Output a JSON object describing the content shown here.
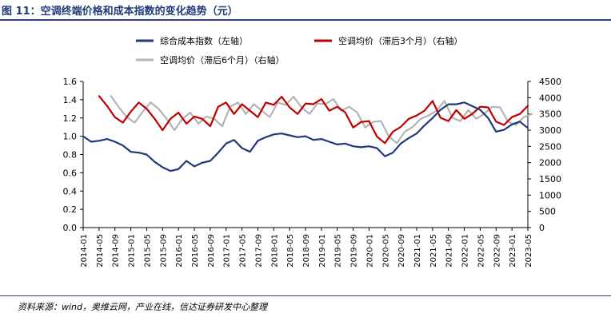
{
  "page": {
    "title": "图 11：空调终端价格和成本指数的变化趋势（元）",
    "source": "资料来源：wind，奥维云网，产业在线，信达证券研发中心整理"
  },
  "chart_data": {
    "type": "line",
    "title": "",
    "xlabel": "",
    "ylabel_left": "",
    "ylabel_right": "",
    "x_ticks": [
      "2014-01",
      "2014-05",
      "2014-09",
      "2015-01",
      "2015-05",
      "2015-09",
      "2016-01",
      "2016-05",
      "2016-09",
      "2017-01",
      "2017-05",
      "2017-09",
      "2018-01",
      "2018-05",
      "2018-09",
      "2019-01",
      "2019-05",
      "2019-09",
      "2020-01",
      "2020-05",
      "2020-09",
      "2021-01",
      "2021-05",
      "2021-09",
      "2022-01",
      "2022-05",
      "2022-09",
      "2023-01",
      "2023-05"
    ],
    "y_left": {
      "range": [
        0,
        1.6
      ],
      "ticks": [
        "0.0",
        "0.2",
        "0.4",
        "0.6",
        "0.8",
        "1.0",
        "1.2",
        "1.4",
        "1.6"
      ]
    },
    "y_right": {
      "range": [
        0,
        4500
      ],
      "ticks": [
        "0",
        "500",
        "1000",
        "1500",
        "2000",
        "2500",
        "3000",
        "3500",
        "4000",
        "4500"
      ]
    },
    "grid": false,
    "legend_position": "top",
    "series": [
      {
        "name": "综合成本指数（左轴）",
        "axis": "left",
        "color": "#1f3a7a",
        "x": [
          "2014-01",
          "2014-03",
          "2014-05",
          "2014-07",
          "2014-09",
          "2014-11",
          "2015-01",
          "2015-03",
          "2015-05",
          "2015-07",
          "2015-09",
          "2015-11",
          "2016-01",
          "2016-03",
          "2016-05",
          "2016-07",
          "2016-09",
          "2016-11",
          "2017-01",
          "2017-03",
          "2017-05",
          "2017-07",
          "2017-09",
          "2017-11",
          "2018-01",
          "2018-03",
          "2018-05",
          "2018-07",
          "2018-09",
          "2018-11",
          "2019-01",
          "2019-03",
          "2019-05",
          "2019-07",
          "2019-09",
          "2019-11",
          "2020-01",
          "2020-03",
          "2020-05",
          "2020-07",
          "2020-09",
          "2020-11",
          "2021-01",
          "2021-03",
          "2021-05",
          "2021-07",
          "2021-09",
          "2021-11",
          "2022-01",
          "2022-03",
          "2022-05",
          "2022-07",
          "2022-09",
          "2022-11",
          "2023-01",
          "2023-03",
          "2023-05"
        ],
        "values": [
          1.0,
          0.94,
          0.95,
          0.97,
          0.94,
          0.9,
          0.83,
          0.82,
          0.8,
          0.72,
          0.66,
          0.62,
          0.64,
          0.73,
          0.67,
          0.71,
          0.73,
          0.82,
          0.92,
          0.96,
          0.87,
          0.83,
          0.95,
          0.99,
          1.02,
          1.03,
          1.01,
          0.99,
          1.0,
          0.96,
          0.97,
          0.94,
          0.91,
          0.92,
          0.89,
          0.88,
          0.89,
          0.87,
          0.78,
          0.82,
          0.92,
          0.98,
          1.03,
          1.12,
          1.2,
          1.29,
          1.35,
          1.35,
          1.37,
          1.33,
          1.29,
          1.2,
          1.05,
          1.07,
          1.13,
          1.16,
          1.09
        ]
      },
      {
        "name": "空调均价（滞后3个月）（右轴）",
        "axis": "right",
        "color": "#c00000",
        "x": [
          "2014-05",
          "2014-07",
          "2014-09",
          "2014-11",
          "2015-01",
          "2015-03",
          "2015-05",
          "2015-07",
          "2015-09",
          "2015-11",
          "2016-01",
          "2016-03",
          "2016-05",
          "2016-07",
          "2016-09",
          "2016-11",
          "2017-01",
          "2017-03",
          "2017-05",
          "2017-07",
          "2017-09",
          "2017-11",
          "2018-01",
          "2018-03",
          "2018-05",
          "2018-07",
          "2018-09",
          "2018-11",
          "2019-01",
          "2019-03",
          "2019-05",
          "2019-07",
          "2019-09",
          "2019-11",
          "2020-01",
          "2020-03",
          "2020-05",
          "2020-07",
          "2020-09",
          "2020-11",
          "2021-01",
          "2021-03",
          "2021-05",
          "2021-07",
          "2021-09",
          "2021-11",
          "2022-01",
          "2022-03",
          "2022-05",
          "2022-07",
          "2022-09",
          "2022-11",
          "2023-01",
          "2023-03",
          "2023-05"
        ],
        "values": [
          4050,
          3750,
          3400,
          3230,
          3570,
          3850,
          3660,
          3350,
          3000,
          3350,
          3540,
          3200,
          3420,
          3350,
          3120,
          3720,
          3850,
          3500,
          3800,
          3600,
          3400,
          3850,
          3780,
          4030,
          3700,
          3500,
          3820,
          3800,
          3960,
          3600,
          3720,
          3550,
          3080,
          3250,
          3280,
          2800,
          2600,
          2950,
          3100,
          3350,
          3450,
          3600,
          3900,
          3380,
          3280,
          3620,
          3350,
          3500,
          3720,
          3700,
          3260,
          3160,
          3400,
          3500,
          3750
        ]
      },
      {
        "name": "空调均价（滞后6个月）（右轴）",
        "axis": "right",
        "color": "#b4b4b4",
        "x": [
          "2014-08",
          "2014-10",
          "2014-12",
          "2015-02",
          "2015-04",
          "2015-06",
          "2015-08",
          "2015-10",
          "2015-12",
          "2016-02",
          "2016-04",
          "2016-06",
          "2016-08",
          "2016-10",
          "2016-12",
          "2017-02",
          "2017-04",
          "2017-06",
          "2017-08",
          "2017-10",
          "2017-12",
          "2018-02",
          "2018-04",
          "2018-06",
          "2018-08",
          "2018-10",
          "2018-12",
          "2019-02",
          "2019-04",
          "2019-06",
          "2019-08",
          "2019-10",
          "2019-12",
          "2020-02",
          "2020-04",
          "2020-06",
          "2020-08",
          "2020-10",
          "2020-12",
          "2021-02",
          "2021-04",
          "2021-06",
          "2021-08",
          "2021-10",
          "2021-12",
          "2022-02",
          "2022-04",
          "2022-06",
          "2022-08",
          "2022-10",
          "2022-12",
          "2023-02",
          "2023-04",
          "2023-06"
        ],
        "values": [
          4050,
          3700,
          3400,
          3230,
          3570,
          3850,
          3660,
          3350,
          3000,
          3350,
          3540,
          3200,
          3420,
          3350,
          3120,
          3720,
          3850,
          3500,
          3800,
          3600,
          3400,
          3850,
          3780,
          4030,
          3700,
          3500,
          3820,
          3800,
          3960,
          3600,
          3720,
          3550,
          3080,
          3250,
          3280,
          2800,
          2600,
          2950,
          3100,
          3350,
          3450,
          3600,
          3900,
          3380,
          3280,
          3620,
          3350,
          3500,
          3720,
          3700,
          3260,
          3160,
          3400,
          3500
        ]
      }
    ]
  }
}
